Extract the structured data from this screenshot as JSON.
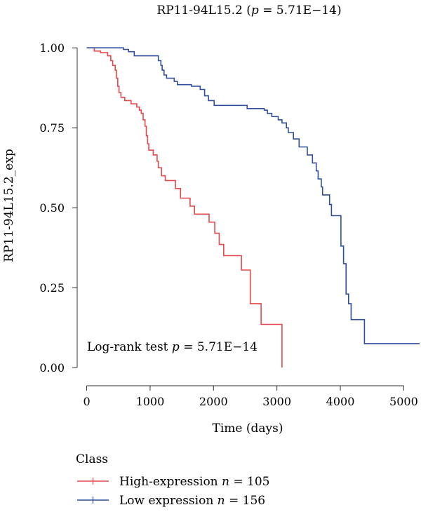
{
  "chart_data": {
    "type": "line",
    "subtype": "kaplan-meier",
    "title_main": "RP11-94L15.2 (",
    "title_p": "p",
    "title_rest": " = 5.71E−14)",
    "xlabel": "Time (days)",
    "ylabel": "RP11-94L15.2_exp",
    "xlim": [
      -150,
      5250
    ],
    "ylim": [
      -0.035,
      1.04
    ],
    "x_ticks": [
      0,
      1000,
      2000,
      3000,
      4000,
      5000
    ],
    "x_tick_labels": [
      "0",
      "1000",
      "2000",
      "3000",
      "4000",
      "5000"
    ],
    "y_ticks": [
      0.0,
      0.25,
      0.5,
      0.75,
      1.0
    ],
    "y_tick_labels": [
      "0.00",
      "0.25",
      "0.50",
      "0.75",
      "1.00"
    ],
    "annotation": {
      "prefix": "Log-rank test ",
      "p": "p",
      "suffix": " = 5.71E−14",
      "x": 0,
      "y": 0.06
    },
    "legend": {
      "title": "Class",
      "position": "bottom-left"
    },
    "series": [
      {
        "label": "High-expression ",
        "n_label": "n",
        "n_suffix": " = 105",
        "color": "#e8474b",
        "points": [
          [
            0,
            1.0
          ],
          [
            120,
            0.99
          ],
          [
            220,
            0.985
          ],
          [
            330,
            0.975
          ],
          [
            380,
            0.96
          ],
          [
            410,
            0.945
          ],
          [
            450,
            0.93
          ],
          [
            470,
            0.905
          ],
          [
            490,
            0.88
          ],
          [
            510,
            0.86
          ],
          [
            540,
            0.845
          ],
          [
            600,
            0.835
          ],
          [
            700,
            0.825
          ],
          [
            790,
            0.815
          ],
          [
            830,
            0.805
          ],
          [
            860,
            0.795
          ],
          [
            890,
            0.775
          ],
          [
            920,
            0.755
          ],
          [
            940,
            0.725
          ],
          [
            960,
            0.7
          ],
          [
            980,
            0.68
          ],
          [
            1050,
            0.665
          ],
          [
            1110,
            0.645
          ],
          [
            1130,
            0.625
          ],
          [
            1180,
            0.6
          ],
          [
            1240,
            0.585
          ],
          [
            1400,
            0.56
          ],
          [
            1480,
            0.53
          ],
          [
            1630,
            0.505
          ],
          [
            1700,
            0.48
          ],
          [
            1930,
            0.455
          ],
          [
            2020,
            0.42
          ],
          [
            2090,
            0.385
          ],
          [
            2160,
            0.35
          ],
          [
            2440,
            0.305
          ],
          [
            2580,
            0.2
          ],
          [
            2750,
            0.135
          ],
          [
            3080,
            0.0
          ]
        ]
      },
      {
        "label": "Low expression ",
        "n_label": "n",
        "n_suffix": " = 156",
        "color": "#2f4f9c",
        "points": [
          [
            0,
            1.0
          ],
          [
            580,
            0.995
          ],
          [
            660,
            0.988
          ],
          [
            750,
            0.975
          ],
          [
            1130,
            0.96
          ],
          [
            1170,
            0.945
          ],
          [
            1190,
            0.93
          ],
          [
            1220,
            0.915
          ],
          [
            1260,
            0.905
          ],
          [
            1380,
            0.895
          ],
          [
            1430,
            0.885
          ],
          [
            1650,
            0.88
          ],
          [
            1790,
            0.87
          ],
          [
            1860,
            0.85
          ],
          [
            1920,
            0.835
          ],
          [
            2010,
            0.82
          ],
          [
            2530,
            0.81
          ],
          [
            2800,
            0.805
          ],
          [
            2850,
            0.795
          ],
          [
            2920,
            0.785
          ],
          [
            3020,
            0.775
          ],
          [
            3080,
            0.765
          ],
          [
            3150,
            0.75
          ],
          [
            3180,
            0.735
          ],
          [
            3260,
            0.715
          ],
          [
            3350,
            0.69
          ],
          [
            3480,
            0.665
          ],
          [
            3560,
            0.64
          ],
          [
            3620,
            0.615
          ],
          [
            3650,
            0.59
          ],
          [
            3700,
            0.565
          ],
          [
            3720,
            0.54
          ],
          [
            3830,
            0.51
          ],
          [
            3860,
            0.475
          ],
          [
            4010,
            0.38
          ],
          [
            4050,
            0.325
          ],
          [
            4090,
            0.23
          ],
          [
            4130,
            0.2
          ],
          [
            4170,
            0.15
          ],
          [
            4380,
            0.075
          ],
          [
            5250,
            0.075
          ]
        ]
      }
    ]
  }
}
